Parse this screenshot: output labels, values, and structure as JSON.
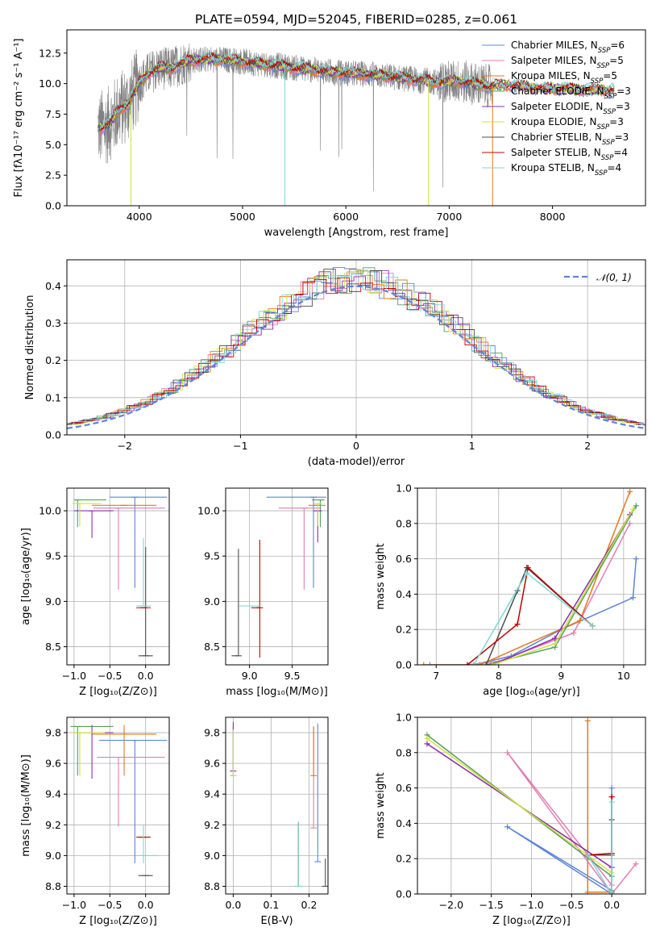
{
  "chart_data": [
    {
      "id": "spectrum",
      "type": "line",
      "title": "PLATE=0594, MJD=52045, FIBERID=0285, z=0.061",
      "xlabel": "wavelength [Angstrom, rest frame]",
      "ylabel": "Flux [fλ10⁻¹⁷ erg cm⁻² s⁻¹ A⁻¹]",
      "xlim": [
        3300,
        8900
      ],
      "ylim": [
        0,
        14.4
      ],
      "xticks": [
        4000,
        5000,
        6000,
        7000,
        8000
      ],
      "yticks": [
        0.0,
        2.5,
        5.0,
        7.5,
        10.0,
        12.5
      ],
      "grid": false,
      "legend_position": "top-right",
      "data_color": "#808080",
      "data_range": [
        3600,
        7420
      ],
      "model_points": {
        "x": [
          3600,
          3700,
          3800,
          3900,
          4000,
          4100,
          4200,
          4300,
          4400,
          4500,
          4700,
          4900,
          5100,
          5300,
          5500,
          5700,
          5900,
          6100,
          6300,
          6500,
          6700,
          6900,
          7100,
          7300,
          7400,
          7500,
          7700,
          7900,
          8100,
          8300,
          8500
        ],
        "y": [
          6.3,
          6.6,
          7.8,
          8.4,
          10.1,
          10.9,
          11.3,
          11.2,
          11.6,
          11.9,
          12.0,
          11.9,
          11.7,
          11.5,
          11.3,
          11.1,
          10.9,
          10.8,
          10.7,
          10.5,
          10.3,
          10.1,
          10.2,
          9.9,
          9.8,
          9.9,
          9.8,
          9.6,
          9.6,
          9.5,
          9.5
        ]
      },
      "legend": [
        {
          "label": "Chabrier MILES, N",
          "sub": "SSP",
          "suffix": "=6",
          "color": "#5b85d9"
        },
        {
          "label": "Salpeter MILES, N",
          "sub": "SSP",
          "suffix": "=5",
          "color": "#e07fb3"
        },
        {
          "label": "Kroupa MILES, N",
          "sub": "SSP",
          "suffix": "=5",
          "color": "#e6781e"
        },
        {
          "label": "Chabrier ELODIE, N",
          "sub": "SSP",
          "suffix": "=3",
          "color": "#55a05a"
        },
        {
          "label": "Salpeter ELODIE, N",
          "sub": "SSP",
          "suffix": "=3",
          "color": "#8d2bab"
        },
        {
          "label": "Kroupa ELODIE, N",
          "sub": "SSP",
          "suffix": "=3",
          "color": "#cde33c"
        },
        {
          "label": "Chabrier STELIB, N",
          "sub": "SSP",
          "suffix": "=3",
          "color": "#4d4d4d"
        },
        {
          "label": "Salpeter STELIB, N",
          "sub": "SSP",
          "suffix": "=4",
          "color": "#c00000"
        },
        {
          "label": "Kroupa STELIB, N",
          "sub": "SSP",
          "suffix": "=4",
          "color": "#7fd6d6"
        }
      ]
    },
    {
      "id": "residuals",
      "type": "line",
      "xlabel": "(data-model)/error",
      "ylabel": "Normed distribution",
      "xlim": [
        -2.5,
        2.5
      ],
      "ylim": [
        0,
        0.47
      ],
      "xticks": [
        -2,
        -1,
        0,
        1,
        2
      ],
      "yticks": [
        0.0,
        0.1,
        0.2,
        0.3,
        0.4
      ],
      "grid": true,
      "legend_position": "top-right",
      "gaussian_label": "𝒩(0, 1)",
      "gaussian_color": "#5b85d9"
    },
    {
      "id": "age-vs-metallicity",
      "type": "scatter",
      "xlabel": "Z [log₁₀(Z/Z⊙)]",
      "ylabel": "age  [log₁₀(age/yr)]",
      "xlim": [
        -1.1,
        0.33
      ],
      "ylim": [
        8.3,
        10.25
      ],
      "xticks": [
        -1.0,
        -0.5,
        0.0
      ],
      "yticks": [
        8.5,
        9.0,
        9.5,
        10.0
      ],
      "grid": true,
      "points": [
        {
          "x": -0.15,
          "y": 10.15,
          "xerr": [
            0.35,
            0.45
          ],
          "yerr": [
            1.0,
            0.0
          ],
          "color": "#5b85d9"
        },
        {
          "x": -0.38,
          "y": 10.03,
          "xerr": [
            0.35,
            0.65
          ],
          "yerr": [
            0.9,
            0.0
          ],
          "color": "#e07fb3"
        },
        {
          "x": -0.3,
          "y": 10.06,
          "xerr": [
            0.45,
            0.45
          ],
          "yerr": [
            0.0,
            0.0
          ],
          "color": "#e6781e"
        },
        {
          "x": -0.95,
          "y": 10.12,
          "xerr": [
            0.05,
            0.4
          ],
          "yerr": [
            0.3,
            0.0
          ],
          "color": "#55a05a"
        },
        {
          "x": -0.75,
          "y": 10.0,
          "xerr": [
            0.25,
            0.3
          ],
          "yerr": [
            0.3,
            0.0
          ],
          "color": "#8d2bab"
        },
        {
          "x": -0.92,
          "y": 10.08,
          "xerr": [
            0.1,
            0.3
          ],
          "yerr": [
            0.25,
            0.0
          ],
          "color": "#cde33c"
        },
        {
          "x": 0.0,
          "y": 8.4,
          "xerr": [
            0.1,
            0.1
          ],
          "yerr": [
            0.0,
            1.2
          ],
          "color": "#4d4d4d"
        },
        {
          "x": -0.03,
          "y": 8.93,
          "xerr": [
            0.1,
            0.1
          ],
          "yerr": [
            0.0,
            0.0
          ],
          "color": "#c00000"
        },
        {
          "x": -0.03,
          "y": 8.95,
          "xerr": [
            0.1,
            0.1
          ],
          "yerr": [
            0.0,
            0.75
          ],
          "color": "#7fd6d6"
        }
      ]
    },
    {
      "id": "age-vs-mass",
      "type": "scatter",
      "xlabel": "mass [log₁₀(M/M⊙)]",
      "xlim": [
        8.72,
        9.92
      ],
      "ylim": [
        8.3,
        10.25
      ],
      "xticks": [
        9.0,
        9.5
      ],
      "yticks": [
        8.5,
        9.0,
        9.5,
        10.0
      ],
      "grid": true,
      "points": [
        {
          "x": 9.75,
          "y": 10.15,
          "xerr": [
            0.55,
            0.15
          ],
          "yerr": [
            1.0,
            0.0
          ],
          "color": "#5b85d9"
        },
        {
          "x": 9.64,
          "y": 10.03,
          "xerr": [
            0.3,
            0.2
          ],
          "yerr": [
            0.9,
            0.0
          ],
          "color": "#e07fb3"
        },
        {
          "x": 9.79,
          "y": 10.06,
          "xerr": [
            0.1,
            0.1
          ],
          "yerr": [
            0.0,
            0.0
          ],
          "color": "#e6781e"
        },
        {
          "x": 9.83,
          "y": 10.12,
          "xerr": [
            0.1,
            0.05
          ],
          "yerr": [
            0.3,
            0.0
          ],
          "color": "#55a05a"
        },
        {
          "x": 9.8,
          "y": 10.0,
          "xerr": [
            0.05,
            0.05
          ],
          "yerr": [
            0.35,
            0.0
          ],
          "color": "#8d2bab"
        },
        {
          "x": 9.8,
          "y": 10.08,
          "xerr": [
            0.05,
            0.05
          ],
          "yerr": [
            0.25,
            0.0
          ],
          "color": "#cde33c"
        },
        {
          "x": 8.87,
          "y": 8.4,
          "xerr": [
            0.08,
            0.0
          ],
          "yerr": [
            0.0,
            1.18
          ],
          "color": "#4d4d4d"
        },
        {
          "x": 9.12,
          "y": 8.93,
          "xerr": [
            0.1,
            0.0
          ],
          "yerr": [
            0.55,
            0.75
          ],
          "color": "#c00000"
        },
        {
          "x": 9.0,
          "y": 8.95,
          "xerr": [
            0.12,
            0.12
          ],
          "yerr": [
            0.0,
            0.0
          ],
          "color": "#7fd6d6"
        }
      ]
    },
    {
      "id": "mass-weight-vs-age",
      "type": "line",
      "xlabel": "age  [log₁₀(age/yr)]",
      "ylabel": "mass weight",
      "xlim": [
        6.7,
        10.35
      ],
      "ylim": [
        0,
        1.0
      ],
      "xticks": [
        7,
        8,
        9,
        10
      ],
      "yticks": [
        0.0,
        0.2,
        0.4,
        0.6,
        0.8,
        1.0
      ],
      "grid": true,
      "series": [
        {
          "color": "#5b85d9",
          "x": [
            6.9,
            7.6,
            8.2,
            9.0,
            10.15,
            10.2
          ],
          "y": [
            0.0,
            0.0,
            0.05,
            0.2,
            0.38,
            0.6
          ]
        },
        {
          "color": "#e07fb3",
          "x": [
            7.5,
            8.0,
            9.2,
            10.1
          ],
          "y": [
            0.0,
            0.02,
            0.18,
            0.8
          ]
        },
        {
          "color": "#e6781e",
          "x": [
            6.8,
            7.7,
            9.3,
            10.1
          ],
          "y": [
            0.0,
            0.0,
            0.25,
            0.98
          ]
        },
        {
          "color": "#55a05a",
          "x": [
            7.8,
            8.9,
            10.2
          ],
          "y": [
            0.0,
            0.1,
            0.9
          ]
        },
        {
          "color": "#8d2bab",
          "x": [
            7.9,
            8.9,
            10.1
          ],
          "y": [
            0.0,
            0.15,
            0.85
          ]
        },
        {
          "color": "#cde33c",
          "x": [
            7.9,
            8.9,
            10.15
          ],
          "y": [
            0.0,
            0.12,
            0.88
          ]
        },
        {
          "color": "#4d4d4d",
          "x": [
            7.8,
            8.3,
            8.45,
            9.5
          ],
          "y": [
            0.0,
            0.42,
            0.55,
            0.22
          ]
        },
        {
          "color": "#c00000",
          "x": [
            7.5,
            8.3,
            8.47,
            9.5
          ],
          "y": [
            0.0,
            0.23,
            0.55,
            0.22
          ]
        },
        {
          "color": "#7fd6d6",
          "x": [
            7.6,
            8.45,
            9.5
          ],
          "y": [
            0.0,
            0.52,
            0.22
          ]
        }
      ]
    },
    {
      "id": "mass-vs-metallicity",
      "type": "scatter",
      "xlabel": "Z [log₁₀(Z/Z⊙)]",
      "ylabel": "mass [log₁₀(M/M⊙)]",
      "xlim": [
        -1.1,
        0.33
      ],
      "ylim": [
        8.75,
        9.9
      ],
      "xticks": [
        -1.0,
        -0.5,
        0.0
      ],
      "yticks": [
        8.8,
        9.0,
        9.2,
        9.4,
        9.6,
        9.8
      ],
      "grid": true,
      "points": [
        {
          "x": -0.15,
          "y": 9.75,
          "xerr": [
            0.5,
            0.45
          ],
          "yerr": [
            0.8,
            0.0
          ],
          "color": "#5b85d9"
        },
        {
          "x": -0.38,
          "y": 9.64,
          "xerr": [
            0.3,
            0.65
          ],
          "yerr": [
            0.45,
            0.0
          ],
          "color": "#e07fb3"
        },
        {
          "x": -0.3,
          "y": 9.79,
          "xerr": [
            0.45,
            0.45
          ],
          "yerr": [
            0.27,
            0.06
          ],
          "color": "#e6781e"
        },
        {
          "x": -0.95,
          "y": 9.84,
          "xerr": [
            0.1,
            0.5
          ],
          "yerr": [
            0.32,
            0.0
          ],
          "color": "#55a05a"
        },
        {
          "x": -0.75,
          "y": 9.8,
          "xerr": [
            0.25,
            0.3
          ],
          "yerr": [
            0.3,
            0.05
          ],
          "color": "#8d2bab"
        },
        {
          "x": -0.92,
          "y": 9.8,
          "xerr": [
            0.1,
            0.35
          ],
          "yerr": [
            0.28,
            0.0
          ],
          "color": "#cde33c"
        },
        {
          "x": 0.0,
          "y": 8.87,
          "xerr": [
            0.1,
            0.1
          ],
          "yerr": [
            0.0,
            0.0
          ],
          "color": "#4d4d4d"
        },
        {
          "x": -0.03,
          "y": 9.12,
          "xerr": [
            0.1,
            0.1
          ],
          "yerr": [
            0.0,
            0.0
          ],
          "color": "#c00000"
        },
        {
          "x": -0.03,
          "y": 9.0,
          "xerr": [
            0.1,
            0.2
          ],
          "yerr": [
            0.05,
            0.2
          ],
          "color": "#7fd6d6"
        }
      ]
    },
    {
      "id": "mass-vs-extinction",
      "type": "scatter",
      "xlabel": "E(B-V)",
      "xlim": [
        -0.02,
        0.25
      ],
      "ylim": [
        8.75,
        9.9
      ],
      "xticks": [
        0.0,
        0.1,
        0.2
      ],
      "yticks": [
        8.8,
        9.0,
        9.2,
        9.4,
        9.6,
        9.8
      ],
      "grid": true,
      "points": [
        {
          "x": 0.223,
          "y": 8.96,
          "yerr": [
            0.0,
            0.9
          ],
          "color": "#5b85d9"
        },
        {
          "x": 0.212,
          "y": 9.18,
          "yerr": [
            0.0,
            0.66
          ],
          "color": "#e07fb3"
        },
        {
          "x": 0.212,
          "y": 9.52,
          "yerr": [
            0.0,
            0.32
          ],
          "color": "#e6781e"
        },
        {
          "x": 0.0,
          "y": 9.52,
          "yerr": [
            0.0,
            0.32
          ],
          "color": "#55a05a"
        },
        {
          "x": 0.0,
          "y": 9.55,
          "yerr": [
            0.0,
            0.32
          ],
          "color": "#8d2bab"
        },
        {
          "x": 0.0,
          "y": 9.52,
          "yerr": [
            0.0,
            0.3
          ],
          "color": "#cde33c"
        },
        {
          "x": 0.243,
          "y": 8.8,
          "yerr": [
            0.0,
            0.18
          ],
          "color": "#4d4d4d"
        },
        {
          "x": 0.172,
          "y": 8.8,
          "yerr": [
            0.0,
            0.42
          ],
          "color": "#c00000"
        },
        {
          "x": 0.172,
          "y": 8.8,
          "yerr": [
            0.0,
            0.42
          ],
          "color": "#7fd6d6"
        }
      ]
    },
    {
      "id": "mass-weight-vs-metallicity",
      "type": "line",
      "xlabel": "Z [log₁₀(Z/Z⊙)]",
      "ylabel": "mass weight",
      "xlim": [
        -2.42,
        0.42
      ],
      "ylim": [
        0,
        1.0
      ],
      "xticks": [
        -2.0,
        -1.5,
        -1.0,
        -0.5,
        0.0
      ],
      "yticks": [
        0.0,
        0.2,
        0.4,
        0.6,
        0.8,
        1.0
      ],
      "grid": true,
      "series": [
        {
          "color": "#5b85d9",
          "x": [
            0.0,
            0.0,
            -1.3,
            0.0
          ],
          "y": [
            0.6,
            0.0,
            0.38,
            0.02
          ]
        },
        {
          "color": "#e07fb3",
          "x": [
            0.3,
            0.0,
            -1.3,
            0.0
          ],
          "y": [
            0.17,
            0.0,
            0.8,
            0.05
          ]
        },
        {
          "color": "#e6781e",
          "x": [
            -0.3,
            -0.3,
            -0.3,
            0.0
          ],
          "y": [
            0.98,
            0.01,
            0.01,
            0.01
          ]
        },
        {
          "color": "#55a05a",
          "x": [
            -2.3,
            0.0,
            0.0
          ],
          "y": [
            0.9,
            0.1,
            0.01
          ]
        },
        {
          "color": "#8d2bab",
          "x": [
            -2.3,
            0.0,
            0.0
          ],
          "y": [
            0.85,
            0.15,
            0.0
          ]
        },
        {
          "color": "#cde33c",
          "x": [
            -2.3,
            0.0,
            0.0
          ],
          "y": [
            0.88,
            0.12,
            0.0
          ]
        },
        {
          "color": "#4d4d4d",
          "x": [
            0.0,
            0.0,
            0.0,
            -0.3
          ],
          "y": [
            0.55,
            0.42,
            0.22,
            0.22
          ]
        },
        {
          "color": "#c00000",
          "x": [
            0.0,
            0.0,
            -0.3
          ],
          "y": [
            0.55,
            0.23,
            0.22
          ]
        },
        {
          "color": "#7fd6d6",
          "x": [
            0.0,
            0.0,
            -0.3
          ],
          "y": [
            0.52,
            0.0,
            0.22
          ]
        }
      ]
    }
  ]
}
